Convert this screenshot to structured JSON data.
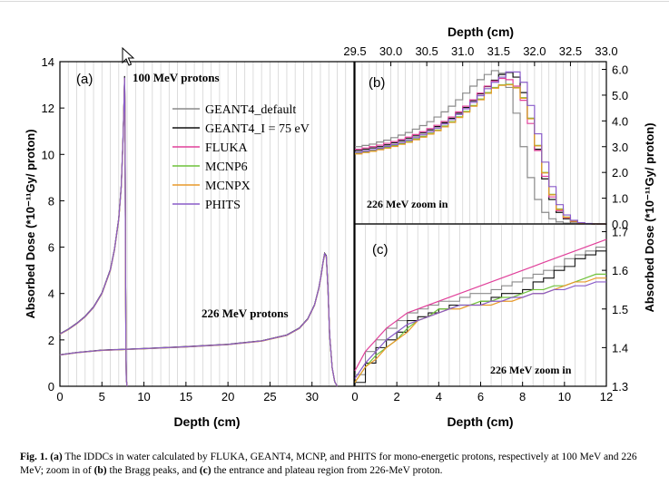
{
  "caption": {
    "label": "Fig. 1.",
    "part_a": "(a)",
    "text1": " The IDDCs in water calculated by FLUKA, GEANT4, MCNP, and PHITS for mono-energetic protons, respectively at 100 MeV and 226 MeV; zoom in of ",
    "part_b": "(b)",
    "text2": " the Bragg peaks, and ",
    "part_c": "(c)",
    "text3": " the entrance and plateau region from 226-MeV proton."
  },
  "chart_data": [
    {
      "type": "line",
      "panel": "(a)",
      "xlabel": "Depth (cm)",
      "ylabel": "Absorbed Dose (*10⁻¹¹Gy/ proton)",
      "xlim": [
        0,
        35
      ],
      "ylim": [
        0,
        14
      ],
      "xticks": [
        0,
        5,
        10,
        15,
        20,
        25,
        30
      ],
      "yticks": [
        0,
        2,
        4,
        6,
        8,
        10,
        12,
        14
      ],
      "grid": "vertical",
      "annotations": [
        "100 MeV protons",
        "226 MeV protons"
      ],
      "legend_position": "upper-middle",
      "series": [
        {
          "name": "GEANT4_default",
          "color": "#8a8a8a"
        },
        {
          "name": "GEANT4_I = 75 eV",
          "color": "#111111"
        },
        {
          "name": "FLUKA",
          "color": "#e0409a"
        },
        {
          "name": "MCNP6",
          "color": "#6fc23a"
        },
        {
          "name": "MCNPX",
          "color": "#e89a2a"
        },
        {
          "name": "PHITS",
          "color": "#8a5cc9"
        }
      ],
      "curve_100MeV": {
        "x": [
          0,
          1,
          2,
          3,
          4,
          5,
          6,
          6.5,
          7,
          7.3,
          7.5,
          7.6,
          7.7,
          7.75,
          7.8,
          7.85,
          7.9,
          8.0
        ],
        "y": [
          2.25,
          2.45,
          2.7,
          3.0,
          3.4,
          4.0,
          5.0,
          5.9,
          7.2,
          8.6,
          10.5,
          11.8,
          13.3,
          11.5,
          6.0,
          2.0,
          0.3,
          0.0
        ]
      },
      "curve_226MeV": {
        "x": [
          0,
          2,
          5,
          10,
          15,
          20,
          24,
          27,
          28.5,
          29.5,
          30.3,
          30.8,
          31.1,
          31.3,
          31.5,
          31.7,
          31.9,
          32.1,
          32.4,
          32.7,
          33.0
        ],
        "y": [
          1.35,
          1.45,
          1.55,
          1.62,
          1.7,
          1.8,
          1.95,
          2.2,
          2.5,
          2.9,
          3.5,
          4.2,
          4.8,
          5.3,
          5.7,
          5.6,
          4.2,
          2.2,
          0.8,
          0.2,
          0.0
        ]
      }
    },
    {
      "type": "line",
      "panel": "(b)",
      "annotation": "226 MeV zoom in",
      "xlabel": "Depth (cm)",
      "ylabel": "Absorbed Dose (*10⁻¹¹Gy/ proton)",
      "xlim": [
        29.5,
        33.0
      ],
      "ylim": [
        0,
        6.3
      ],
      "xticks": [
        29.5,
        30.0,
        30.5,
        31.0,
        31.5,
        32.0,
        32.5,
        33.0
      ],
      "xtick_labels": [
        "29.5",
        "30.0",
        "30.5",
        "31.0",
        "31.5",
        "32.0",
        "32.5",
        "33.0"
      ],
      "yticks": [
        0,
        1,
        2,
        3,
        4,
        5,
        6
      ],
      "ytick_labels": [
        "0.0",
        "1.0",
        "2.0",
        "3.0",
        "4.0",
        "5.0",
        "6.0"
      ],
      "x": [
        29.5,
        29.6,
        29.7,
        29.8,
        29.9,
        30.0,
        30.1,
        30.2,
        30.3,
        30.4,
        30.5,
        30.6,
        30.7,
        30.8,
        30.9,
        31.0,
        31.1,
        31.2,
        31.3,
        31.4,
        31.5,
        31.6,
        31.7,
        31.8,
        31.9,
        32.0,
        32.1,
        32.2,
        32.3,
        32.4,
        32.5,
        32.6,
        32.7,
        32.8,
        32.9,
        33.0
      ],
      "series": [
        {
          "name": "GEANT4_default",
          "values": [
            3.0,
            3.05,
            3.1,
            3.18,
            3.25,
            3.35,
            3.45,
            3.55,
            3.68,
            3.82,
            3.97,
            4.15,
            4.35,
            4.57,
            4.82,
            5.08,
            5.35,
            5.6,
            5.8,
            5.95,
            5.85,
            5.3,
            4.3,
            3.0,
            1.8,
            0.95,
            0.45,
            0.2,
            0.08,
            0.03,
            0.01,
            0.0,
            0.0,
            0.0,
            0.0,
            0.0
          ]
        },
        {
          "name": "GEANT4_I = 75 eV",
          "values": [
            2.85,
            2.9,
            2.95,
            3.0,
            3.07,
            3.15,
            3.23,
            3.32,
            3.42,
            3.53,
            3.65,
            3.78,
            3.93,
            4.1,
            4.3,
            4.52,
            4.78,
            5.05,
            5.33,
            5.58,
            5.8,
            5.88,
            5.7,
            5.1,
            4.1,
            2.9,
            1.75,
            0.95,
            0.45,
            0.2,
            0.08,
            0.03,
            0.01,
            0.0,
            0.0,
            0.0
          ]
        },
        {
          "name": "FLUKA",
          "values": [
            2.9,
            2.95,
            3.0,
            3.06,
            3.13,
            3.2,
            3.28,
            3.37,
            3.47,
            3.58,
            3.7,
            3.83,
            3.98,
            4.15,
            4.35,
            4.57,
            4.82,
            5.08,
            5.35,
            5.55,
            5.65,
            5.6,
            5.35,
            4.8,
            3.9,
            2.85,
            1.85,
            1.05,
            0.52,
            0.24,
            0.1,
            0.04,
            0.01,
            0.0,
            0.0,
            0.0
          ]
        },
        {
          "name": "MCNP6",
          "values": [
            2.75,
            2.8,
            2.85,
            2.9,
            2.97,
            3.04,
            3.12,
            3.2,
            3.3,
            3.4,
            3.52,
            3.65,
            3.8,
            3.97,
            4.16,
            4.37,
            4.6,
            4.85,
            5.1,
            5.3,
            5.4,
            5.42,
            5.3,
            4.9,
            4.1,
            3.05,
            2.0,
            1.15,
            0.58,
            0.27,
            0.11,
            0.04,
            0.01,
            0.0,
            0.0,
            0.0
          ]
        },
        {
          "name": "MCNPX",
          "values": [
            2.72,
            2.77,
            2.82,
            2.88,
            2.94,
            3.01,
            3.09,
            3.17,
            3.27,
            3.37,
            3.49,
            3.62,
            3.77,
            3.94,
            4.13,
            4.34,
            4.57,
            4.82,
            5.07,
            5.27,
            5.38,
            5.4,
            5.28,
            4.88,
            4.08,
            3.03,
            1.98,
            1.13,
            0.56,
            0.26,
            0.1,
            0.04,
            0.01,
            0.0,
            0.0,
            0.0
          ]
        },
        {
          "name": "PHITS",
          "values": [
            2.78,
            2.83,
            2.88,
            2.94,
            3.01,
            3.08,
            3.16,
            3.25,
            3.35,
            3.46,
            3.58,
            3.72,
            3.88,
            4.05,
            4.25,
            4.47,
            4.72,
            4.98,
            5.25,
            5.5,
            5.7,
            5.9,
            5.9,
            5.5,
            4.6,
            3.5,
            2.4,
            1.45,
            0.75,
            0.35,
            0.14,
            0.05,
            0.02,
            0.0,
            0.0,
            0.0
          ]
        }
      ]
    },
    {
      "type": "line",
      "panel": "(c)",
      "annotation": "226 MeV zoom in",
      "xlabel": "Depth (cm)",
      "ylabel": "Absorbed Dose (*10⁻¹¹Gy/ proton)",
      "xlim": [
        0,
        12
      ],
      "ylim": [
        1.3,
        1.72
      ],
      "xticks": [
        0,
        2,
        4,
        6,
        8,
        10,
        12
      ],
      "yticks": [
        1.3,
        1.4,
        1.5,
        1.6,
        1.7
      ],
      "x": [
        0,
        0.5,
        1,
        1.5,
        2,
        2.5,
        3,
        3.5,
        4,
        4.5,
        5,
        5.5,
        6,
        6.5,
        7,
        7.5,
        8,
        8.5,
        9,
        9.5,
        10,
        10.5,
        11,
        11.5,
        12
      ],
      "series": [
        {
          "name": "GEANT4_default",
          "values": [
            1.33,
            1.39,
            1.42,
            1.45,
            1.47,
            1.49,
            1.5,
            1.51,
            1.52,
            1.52,
            1.53,
            1.54,
            1.54,
            1.55,
            1.56,
            1.57,
            1.58,
            1.59,
            1.6,
            1.61,
            1.63,
            1.64,
            1.65,
            1.66,
            1.66
          ]
        },
        {
          "name": "GEANT4_I = 75 eV",
          "values": [
            1.31,
            1.36,
            1.4,
            1.42,
            1.44,
            1.47,
            1.48,
            1.49,
            1.5,
            1.51,
            1.51,
            1.51,
            1.52,
            1.53,
            1.54,
            1.54,
            1.55,
            1.57,
            1.58,
            1.6,
            1.61,
            1.63,
            1.64,
            1.65,
            1.65
          ]
        },
        {
          "name": "FLUKA",
          "values": [
            1.34,
            1.39,
            1.42,
            1.45,
            1.47,
            1.49,
            1.5,
            1.51,
            1.52,
            1.53,
            1.54,
            1.55,
            1.56,
            1.57,
            1.58,
            1.59,
            1.6,
            1.61,
            1.62,
            1.63,
            1.64,
            1.65,
            1.66,
            1.67,
            1.68
          ]
        },
        {
          "name": "MCNP6",
          "values": [
            1.31,
            1.35,
            1.38,
            1.4,
            1.42,
            1.45,
            1.47,
            1.48,
            1.5,
            1.5,
            1.51,
            1.51,
            1.52,
            1.52,
            1.53,
            1.53,
            1.54,
            1.55,
            1.55,
            1.56,
            1.56,
            1.57,
            1.58,
            1.59,
            1.59
          ]
        },
        {
          "name": "MCNPX",
          "values": [
            1.31,
            1.35,
            1.37,
            1.4,
            1.42,
            1.44,
            1.47,
            1.48,
            1.49,
            1.5,
            1.5,
            1.51,
            1.51,
            1.51,
            1.52,
            1.52,
            1.53,
            1.54,
            1.54,
            1.55,
            1.56,
            1.57,
            1.57,
            1.58,
            1.58
          ]
        },
        {
          "name": "PHITS",
          "values": [
            1.32,
            1.36,
            1.39,
            1.42,
            1.44,
            1.46,
            1.47,
            1.48,
            1.49,
            1.5,
            1.51,
            1.51,
            1.51,
            1.52,
            1.52,
            1.53,
            1.53,
            1.54,
            1.54,
            1.55,
            1.55,
            1.56,
            1.56,
            1.57,
            1.57
          ]
        }
      ]
    }
  ]
}
